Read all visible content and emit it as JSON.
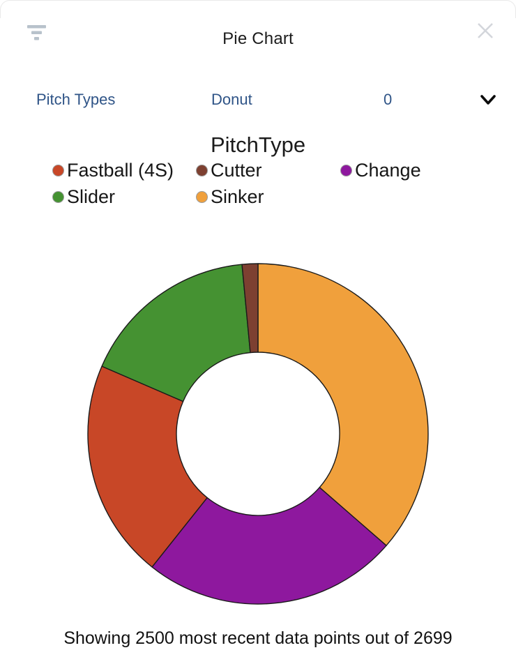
{
  "header": {
    "title": "Pie Chart"
  },
  "controls": {
    "dataset_label": "Pitch Types",
    "style_label": "Donut",
    "value_label": "0"
  },
  "chart_data": {
    "type": "pie",
    "style": "donut",
    "title": "PitchType",
    "hole_ratio": 0.48,
    "direction": "clockwise",
    "start_angle_deg": 0,
    "legend_position": "top",
    "legend": [
      {
        "label": "Fastball (4S)",
        "color": "#c84727"
      },
      {
        "label": "Cutter",
        "color": "#7d4031"
      },
      {
        "label": "Change",
        "color": "#8e189e"
      },
      {
        "label": "Slider",
        "color": "#459232"
      },
      {
        "label": "Sinker",
        "color": "#f0a03c"
      }
    ],
    "segments": [
      {
        "label": "Sinker",
        "percent": 36.4,
        "angle_deg": 131.0,
        "color": "#f0a03c"
      },
      {
        "label": "Change",
        "percent": 24.3,
        "angle_deg": 87.5,
        "color": "#8e189e"
      },
      {
        "label": "Fastball (4S)",
        "percent": 20.8,
        "angle_deg": 74.9,
        "color": "#c84727"
      },
      {
        "label": "Slider",
        "percent": 17.0,
        "angle_deg": 61.2,
        "color": "#459232"
      },
      {
        "label": "Cutter",
        "percent": 1.5,
        "angle_deg": 5.4,
        "color": "#7d4031"
      }
    ],
    "outline_color": "#1a1a1a",
    "points_shown": 2500,
    "points_total": 2699
  },
  "footer": {
    "caption": "Showing 2500 most recent data points out of 2699"
  },
  "colors": {
    "accent_text": "#2f5487",
    "filter_icon": "#b8c2cb",
    "close_icon": "#d3d6db"
  }
}
